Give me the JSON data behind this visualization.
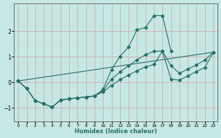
{
  "xlabel": "Humidex (Indice chaleur)",
  "bg_color": "#c5e8e4",
  "line_color": "#2a706a",
  "grid_color": "#d4a0a0",
  "xlim": [
    -0.5,
    23.5
  ],
  "ylim": [
    -1.55,
    3.1
  ],
  "xticks": [
    0,
    1,
    2,
    3,
    4,
    5,
    6,
    7,
    8,
    9,
    10,
    11,
    12,
    13,
    14,
    15,
    16,
    17,
    18,
    19,
    20,
    21,
    22,
    23
  ],
  "yticks": [
    -1,
    0,
    1,
    2
  ],
  "curves": [
    {
      "x": [
        0,
        1,
        2,
        3,
        4,
        5,
        6,
        7,
        8,
        9,
        10,
        11,
        12,
        13,
        14,
        15,
        16,
        17,
        18,
        19,
        20,
        21,
        22,
        23
      ],
      "y": [
        0.05,
        -0.25,
        -0.72,
        -0.85,
        -0.98,
        -0.7,
        -0.65,
        -0.62,
        -0.58,
        -0.54,
        -0.28,
        0.5,
        1.02,
        1.38,
        2.06,
        2.15,
        2.62,
        2.62,
        1.22,
        null,
        null,
        null,
        null,
        null
      ]
    },
    {
      "x": [
        0,
        1,
        2,
        3,
        4,
        5,
        6,
        7,
        8,
        9,
        10,
        11,
        12,
        13,
        14,
        15,
        16,
        17,
        18,
        19,
        20,
        21,
        22,
        23
      ],
      "y": [
        0.05,
        -0.25,
        -0.72,
        -0.85,
        -0.98,
        -0.7,
        -0.65,
        -0.62,
        -0.58,
        -0.54,
        -0.33,
        0.12,
        0.4,
        0.65,
        0.88,
        1.08,
        1.22,
        1.22,
        0.65,
        0.35,
        0.52,
        0.68,
        0.88,
        1.18
      ]
    },
    {
      "x": [
        0,
        1,
        2,
        3,
        4,
        5,
        6,
        7,
        8,
        9,
        10,
        11,
        12,
        13,
        14,
        15,
        16,
        17,
        18,
        19,
        20,
        21,
        22,
        23
      ],
      "y": [
        0.05,
        -0.25,
        -0.72,
        -0.85,
        -0.98,
        -0.7,
        -0.65,
        -0.62,
        -0.58,
        -0.54,
        -0.38,
        -0.12,
        0.1,
        0.28,
        0.45,
        0.6,
        0.7,
        1.22,
        0.12,
        0.08,
        0.25,
        0.42,
        0.58,
        1.18
      ]
    },
    {
      "x": [
        0,
        23
      ],
      "y": [
        0.05,
        1.18
      ]
    }
  ]
}
